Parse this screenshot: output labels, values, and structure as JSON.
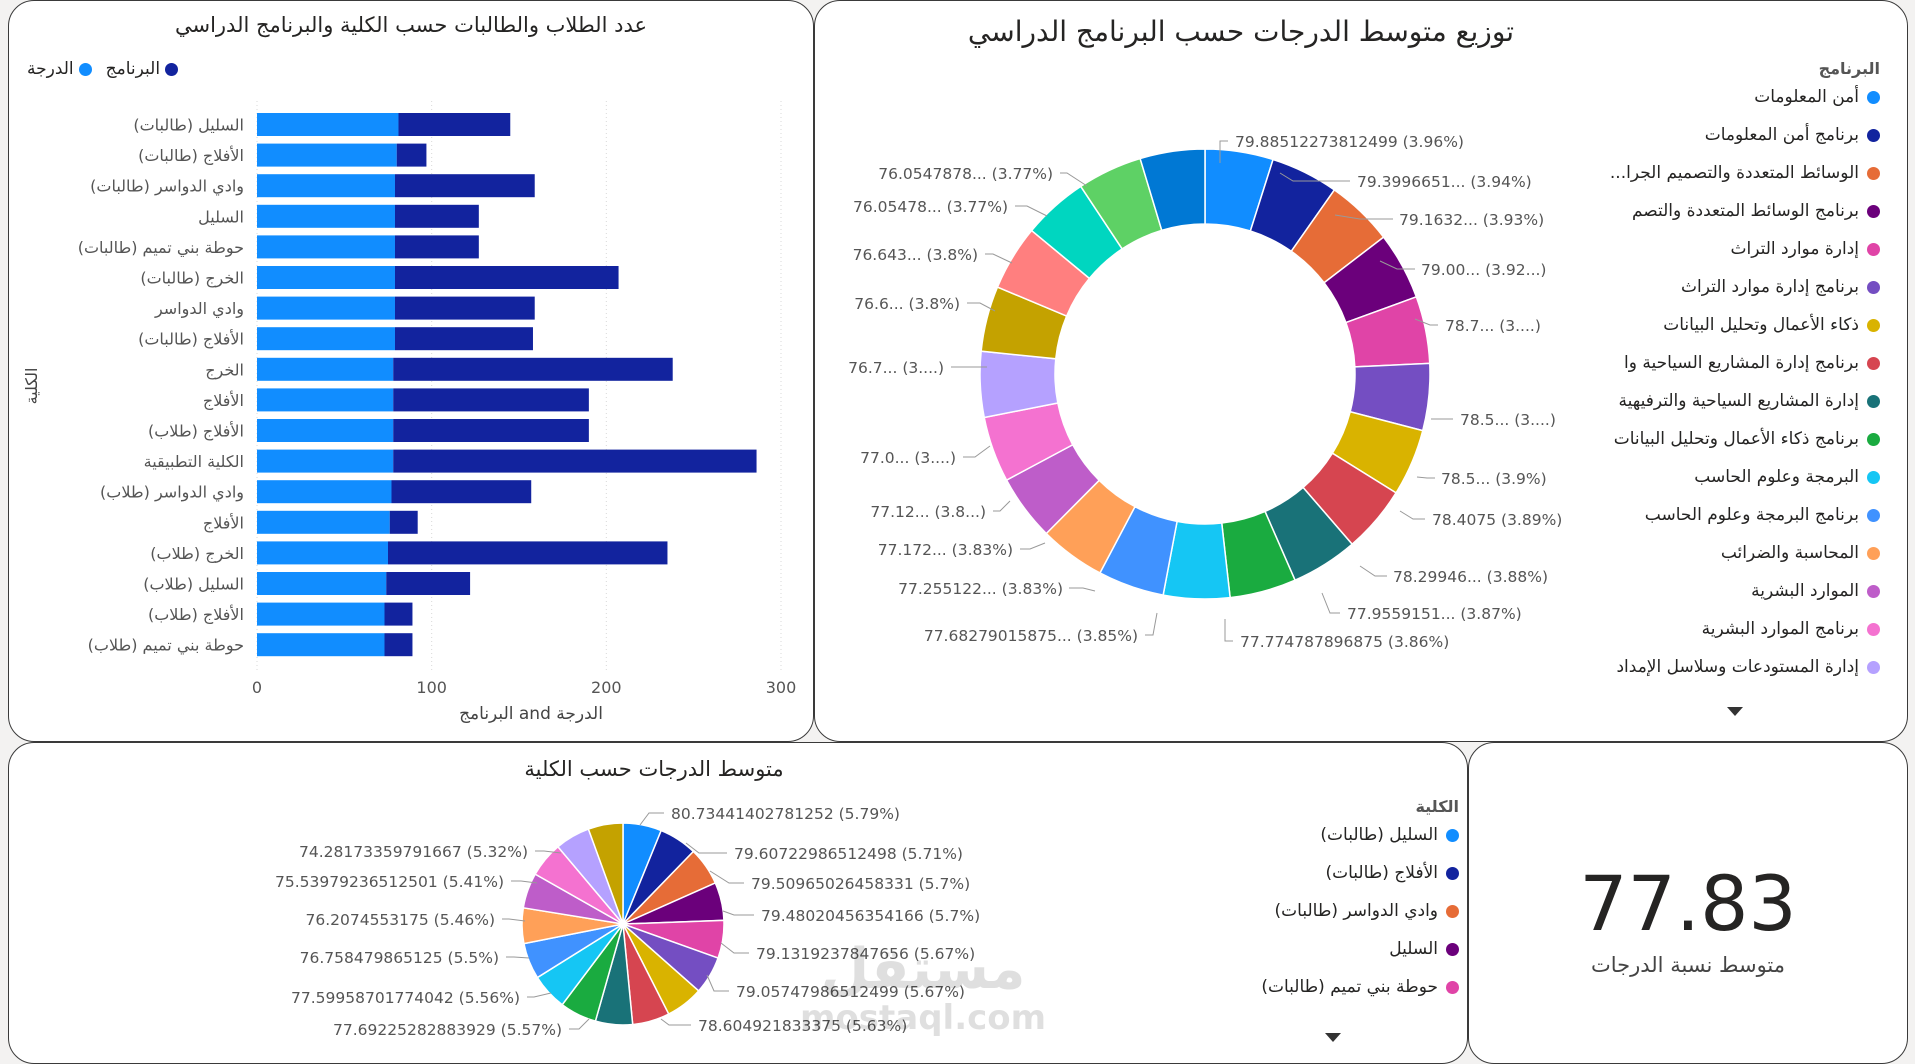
{
  "bar_chart": {
    "title": "عدد الطلاب والطالبات حسب الكلية والبرنامج الدراسي",
    "legend": [
      {
        "label": "الدرجة",
        "color": "#118DFF"
      },
      {
        "label": "البرنامج",
        "color": "#12239E"
      }
    ],
    "xlabel": "البرنامج and الدرجة",
    "ylabel": "الكلية",
    "xticks": [
      "0",
      "100",
      "200",
      "300"
    ]
  },
  "donut_chart": {
    "title": "توزيع متوسط الدرجات حسب البرنامج الدراسي",
    "legend_title": "البرنامج",
    "legend": [
      {
        "label": "أمن المعلومات",
        "color": "#118DFF"
      },
      {
        "label": "برنامج أمن المعلومات",
        "color": "#12239E"
      },
      {
        "label": "الوسائط المتعددة والتصميم الجرا...",
        "color": "#E66C37"
      },
      {
        "label": "برنامج الوسائط المتعددة والتصم",
        "color": "#6B007B"
      },
      {
        "label": "إدارة موارد التراث",
        "color": "#E044A7"
      },
      {
        "label": "برنامج إدارة موارد التراث",
        "color": "#744EC2"
      },
      {
        "label": "ذكاء الأعمال وتحليل البيانات",
        "color": "#D9B300"
      },
      {
        "label": "برنامج إدارة المشاريع السياحية وا",
        "color": "#D64550"
      },
      {
        "label": "إدارة المشاريع السياحية والترفيهية",
        "color": "#197278"
      },
      {
        "label": "برنامج ذكاء الأعمال وتحليل البيانات",
        "color": "#1AAB40"
      },
      {
        "label": "البرمجة وعلوم الحاسب",
        "color": "#15C6F4"
      },
      {
        "label": "برنامج البرمجة وعلوم الحاسب",
        "color": "#4092FF"
      },
      {
        "label": "المحاسبة والضرائب",
        "color": "#FFA058"
      },
      {
        "label": "الموارد البشرية",
        "color": "#BE5DC9"
      },
      {
        "label": "برنامج الموارد البشرية",
        "color": "#F472D0"
      },
      {
        "label": "إدارة المستودعات وسلاسل الإمداد",
        "color": "#B5A1FF"
      }
    ],
    "slice_labels": [
      "79.88512273812499 (3.96%)",
      "79.3996651... (3.94%)",
      "79.1632... (3.93%)",
      "79.00... (3.92...)",
      "78.7... (3....)",
      "78.5... (3....)",
      "78.5... (3.9%)",
      "78.4075 (3.89%)",
      "78.29946... (3.88%)",
      "77.9559151... (3.87%)",
      "77.774787896875 (3.86%)",
      "77.68279015875... (3.85%)",
      "77.255122... (3.83%)",
      "77.172... (3.83%)",
      "77.12... (3.8...)",
      "77.0... (3....)",
      "76.7... (3....)",
      "76.6... (3.8%)",
      "76.643... (3.8%)",
      "76.05478... (3.77%)",
      "76.0547878... (3.77%)"
    ]
  },
  "pie_chart": {
    "title": "متوسط الدرجات حسب الكلية",
    "legend_title": "الكلية",
    "legend": [
      {
        "label": "السليل (طالبات)",
        "color": "#118DFF"
      },
      {
        "label": "الأفلاج (طالبات)",
        "color": "#12239E"
      },
      {
        "label": "وادي الدواسر (طالبات)",
        "color": "#E66C37"
      },
      {
        "label": "السليل",
        "color": "#6B007B"
      },
      {
        "label": "حوطة بني تميم (طالبات)",
        "color": "#E044A7"
      }
    ],
    "slice_labels": [
      "80.73441402781252 (5.79%)",
      "79.60722986512498 (5.71%)",
      "79.50965026458331 (5.7%)",
      "79.48020456354166 (5.7%)",
      "79.1319237847656 (5.67%)",
      "79.05747986512499 (5.67%)",
      "78.604921833375 (5.63%)",
      "77.69225282883929 (5.57%)",
      "77.59958701774042 (5.56%)",
      "76.758479865125 (5.5%)",
      "76.2074553175 (5.46%)",
      "75.53979236512501 (5.41%)",
      "74.28173359791667 (5.32%)"
    ]
  },
  "kpi": {
    "value": "77.83",
    "label": "متوسط نسبة الدرجات"
  },
  "watermark": {
    "arabic": "مستقل",
    "latin": "mostaql.com"
  },
  "chart_data": [
    {
      "type": "bar",
      "title": "عدد الطلاب والطالبات حسب الكلية والبرنامج الدراسي",
      "stacked": true,
      "orientation": "horizontal",
      "xlabel": "البرنامج and الدرجة",
      "ylabel": "الكلية",
      "xlim": [
        0,
        300
      ],
      "categories": [
        "السليل (طالبات)",
        "الأفلاج (طالبات)",
        "وادي الدواسر (طالبات)",
        "السليل",
        "حوطة بني تميم (طالبات)",
        "الخرج (طالبات)",
        "وادي الدواسر",
        "الأفلاج (طالبات)",
        "الخرج",
        "الأفلاج",
        "الأفلاج (طلاب)",
        "الكلية التطبيقية",
        "وادي الدواسر (طلاب)",
        "الأفلاج",
        "الخرج (طلاب)",
        "السليل (طلاب)",
        "الأفلاج (طلاب)",
        "حوطة بني تميم (طلاب)"
      ],
      "series": [
        {
          "name": "الدرجة",
          "color": "#118DFF",
          "values": [
            81,
            80,
            79,
            79,
            79,
            79,
            79,
            79,
            78,
            78,
            78,
            78,
            77,
            76,
            75,
            74,
            73,
            73
          ]
        },
        {
          "name": "البرنامج",
          "color": "#12239E",
          "values": [
            64,
            17,
            80,
            48,
            48,
            128,
            80,
            79,
            160,
            112,
            112,
            208,
            80,
            16,
            160,
            48,
            16,
            16
          ]
        }
      ]
    },
    {
      "type": "pie",
      "variant": "donut",
      "title": "توزيع متوسط الدرجات حسب البرنامج الدراسي",
      "values": [
        79.89,
        79.4,
        79.16,
        79.0,
        78.7,
        78.5,
        78.5,
        78.41,
        78.3,
        77.96,
        77.77,
        77.68,
        77.26,
        77.17,
        77.12,
        77.0,
        76.7,
        76.6,
        76.64,
        76.05,
        76.05
      ],
      "colors": [
        "#118DFF",
        "#12239E",
        "#E66C37",
        "#6B007B",
        "#E044A7",
        "#744EC2",
        "#D9B300",
        "#D64550",
        "#197278",
        "#1AAB40",
        "#15C6F4",
        "#4092FF",
        "#FFA058",
        "#BE5DC9",
        "#F472D0",
        "#B5A1FF",
        "#C4A200",
        "#FF7F7F",
        "#00D6C0",
        "#5ED165",
        "#0078D4",
        "#4B65C6",
        "#FF6600",
        "#93008E",
        "#E8008A",
        "#55307A"
      ]
    },
    {
      "type": "pie",
      "title": "متوسط الدرجات حسب الكلية",
      "values": [
        80.73,
        79.61,
        79.51,
        79.48,
        79.13,
        79.06,
        78.6,
        77.69,
        77.6,
        76.76,
        76.21,
        75.54,
        74.28,
        74.0,
        73.7,
        73.0,
        72.7
      ],
      "colors": [
        "#118DFF",
        "#12239E",
        "#E66C37",
        "#6B007B",
        "#E044A7",
        "#744EC2",
        "#D9B300",
        "#D64550",
        "#197278",
        "#1AAB40",
        "#15C6F4",
        "#4092FF",
        "#FFA058",
        "#BE5DC9",
        "#F472D0",
        "#B5A1FF",
        "#C4A200",
        "#FF7F7F"
      ]
    }
  ]
}
